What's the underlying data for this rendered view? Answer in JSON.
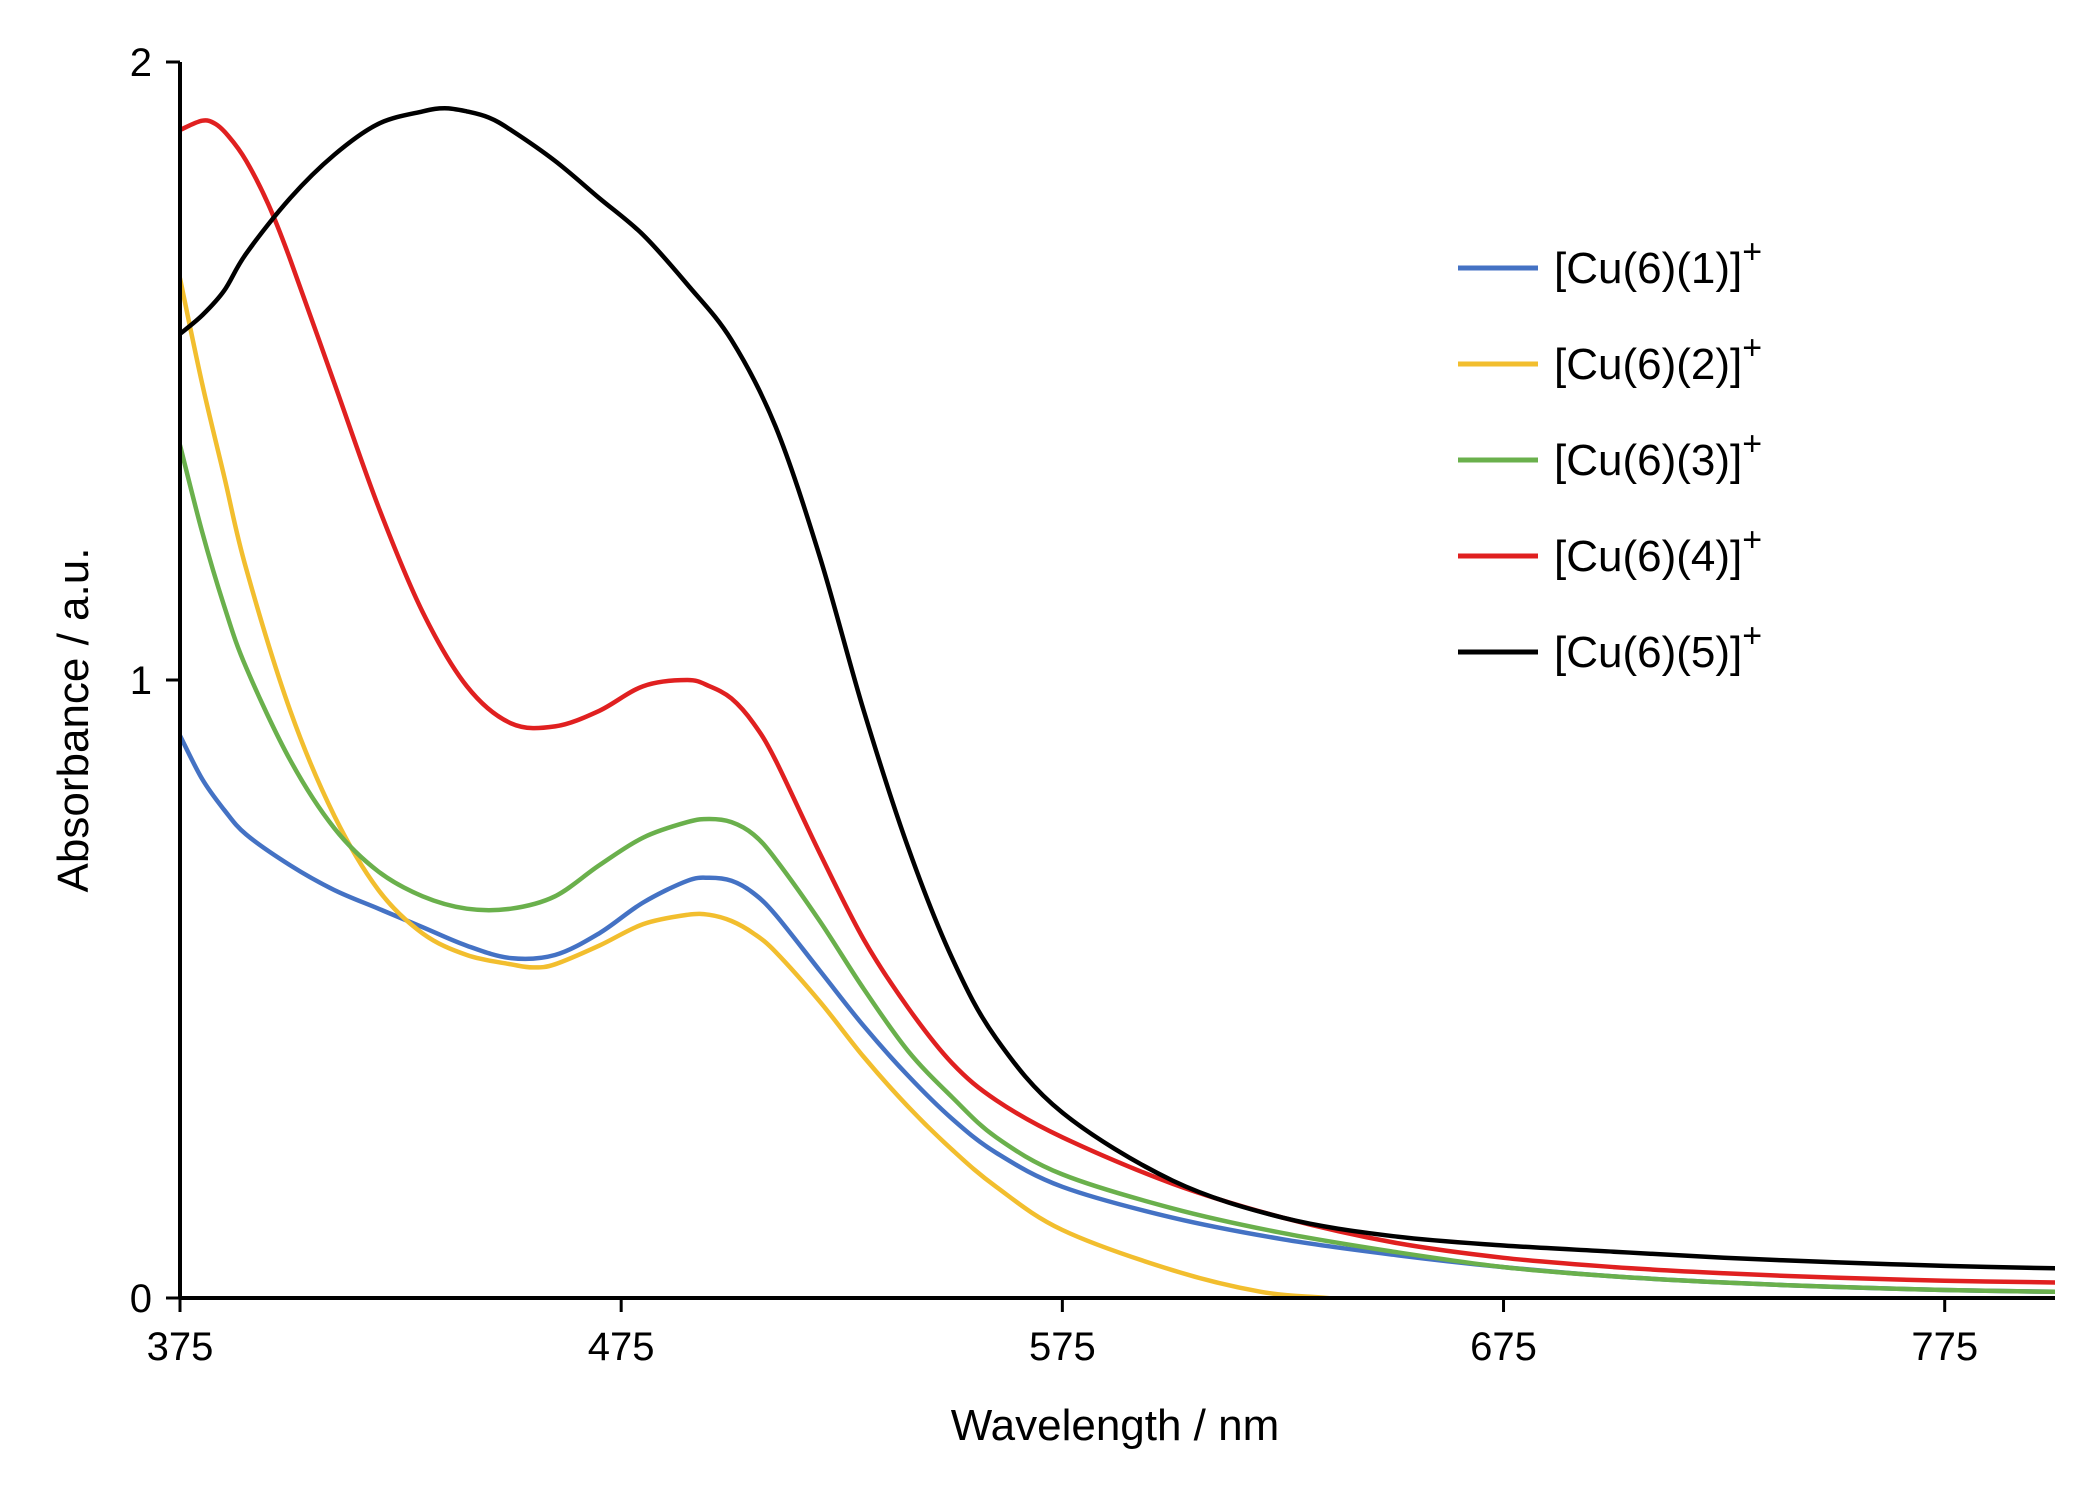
{
  "chart_data": {
    "type": "line",
    "title": "",
    "xlabel": "Wavelength / nm",
    "ylabel": "Absorbance / a.u.",
    "xlim": [
      375,
      800
    ],
    "ylim": [
      0,
      2
    ],
    "xticks": [
      375,
      475,
      575,
      675,
      775
    ],
    "xtick_labels": [
      "375",
      "475",
      "575",
      "675",
      "775"
    ],
    "yticks": [
      0,
      1,
      2
    ],
    "ytick_labels": [
      "0",
      "1",
      "2"
    ],
    "grid": false,
    "legend_position": "top-right",
    "series": [
      {
        "name": "[Cu(6)(1)]",
        "charge": "+",
        "color": "#4472C4",
        "x": [
          375,
          380,
          385,
          390,
          400,
          410,
          420,
          430,
          440,
          450,
          460,
          470,
          480,
          490,
          495,
          500,
          505,
          510,
          520,
          530,
          540,
          550,
          560,
          575,
          600,
          625,
          650,
          675,
          700,
          725,
          750,
          775,
          800
        ],
        "y": [
          0.91,
          0.84,
          0.79,
          0.75,
          0.7,
          0.66,
          0.63,
          0.6,
          0.57,
          0.55,
          0.555,
          0.59,
          0.64,
          0.675,
          0.68,
          0.675,
          0.655,
          0.62,
          0.53,
          0.44,
          0.36,
          0.29,
          0.235,
          0.18,
          0.13,
          0.095,
          0.07,
          0.05,
          0.035,
          0.025,
          0.018,
          0.013,
          0.01
        ]
      },
      {
        "name": "[Cu(6)(2)]",
        "charge": "+",
        "color": "#F2BE2E",
        "x": [
          375,
          380,
          385,
          390,
          400,
          410,
          420,
          430,
          440,
          450,
          455,
          460,
          470,
          480,
          490,
          495,
          500,
          505,
          510,
          520,
          530,
          540,
          550,
          560,
          575,
          600,
          620,
          635,
          650
        ],
        "y": [
          1.65,
          1.48,
          1.33,
          1.18,
          0.95,
          0.78,
          0.66,
          0.59,
          0.555,
          0.54,
          0.535,
          0.54,
          0.57,
          0.605,
          0.62,
          0.62,
          0.61,
          0.59,
          0.56,
          0.48,
          0.39,
          0.31,
          0.24,
          0.18,
          0.11,
          0.045,
          0.01,
          0.0,
          -0.01
        ]
      },
      {
        "name": "[Cu(6)(3)]",
        "charge": "+",
        "color": "#6AB04C",
        "x": [
          375,
          380,
          385,
          390,
          400,
          410,
          420,
          430,
          440,
          450,
          460,
          470,
          480,
          490,
          495,
          500,
          505,
          510,
          520,
          530,
          540,
          550,
          560,
          575,
          600,
          625,
          650,
          675,
          700,
          725,
          750,
          775,
          800
        ],
        "y": [
          1.38,
          1.24,
          1.12,
          1.02,
          0.87,
          0.76,
          0.69,
          0.65,
          0.63,
          0.63,
          0.65,
          0.7,
          0.745,
          0.77,
          0.775,
          0.77,
          0.75,
          0.71,
          0.61,
          0.5,
          0.4,
          0.325,
          0.26,
          0.2,
          0.145,
          0.105,
          0.075,
          0.05,
          0.035,
          0.025,
          0.018,
          0.013,
          0.01
        ]
      },
      {
        "name": "[Cu(6)(4)]",
        "charge": "+",
        "color": "#E02020",
        "x": [
          375,
          380,
          383,
          386,
          390,
          395,
          400,
          410,
          420,
          430,
          440,
          450,
          460,
          470,
          480,
          490,
          495,
          500,
          505,
          510,
          520,
          530,
          540,
          550,
          560,
          575,
          600,
          625,
          650,
          675,
          700,
          725,
          750,
          775,
          800
        ],
        "y": [
          1.89,
          1.905,
          1.9,
          1.88,
          1.84,
          1.77,
          1.68,
          1.48,
          1.28,
          1.11,
          0.99,
          0.93,
          0.925,
          0.95,
          0.99,
          1.0,
          0.99,
          0.97,
          0.93,
          0.87,
          0.72,
          0.58,
          0.47,
          0.38,
          0.32,
          0.26,
          0.185,
          0.13,
          0.09,
          0.065,
          0.05,
          0.04,
          0.033,
          0.028,
          0.025
        ]
      },
      {
        "name": "[Cu(6)(5)]",
        "charge": "+",
        "color": "#000000",
        "x": [
          375,
          380,
          385,
          390,
          400,
          410,
          420,
          430,
          435,
          440,
          445,
          450,
          460,
          470,
          480,
          490,
          500,
          510,
          520,
          530,
          540,
          550,
          560,
          575,
          600,
          625,
          650,
          675,
          700,
          725,
          750,
          775,
          800
        ],
        "y": [
          1.56,
          1.59,
          1.63,
          1.69,
          1.78,
          1.85,
          1.9,
          1.92,
          1.925,
          1.92,
          1.91,
          1.89,
          1.84,
          1.78,
          1.72,
          1.64,
          1.55,
          1.41,
          1.2,
          0.95,
          0.73,
          0.55,
          0.42,
          0.3,
          0.19,
          0.13,
          0.1,
          0.085,
          0.075,
          0.065,
          0.058,
          0.052,
          0.048
        ]
      }
    ]
  }
}
